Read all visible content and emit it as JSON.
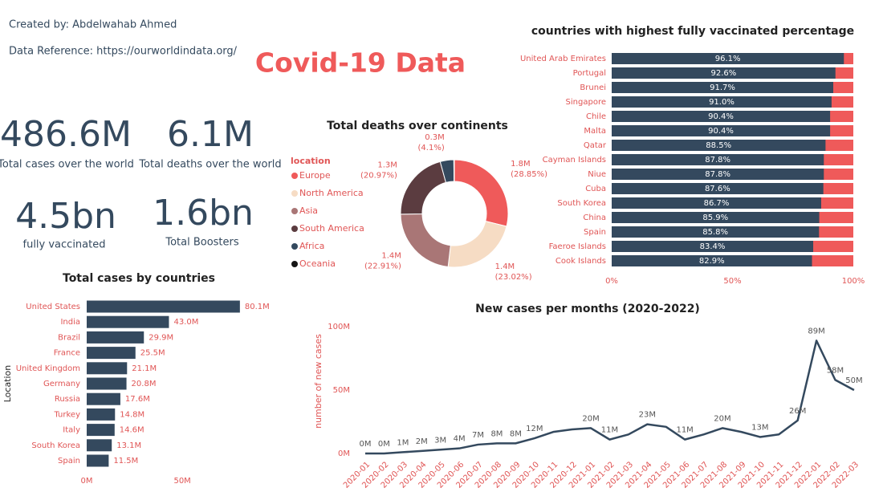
{
  "header": {
    "created_by": "Created by: Abdelwahab Ahmed",
    "reference": "Data Reference: https://ourworldindata.org/",
    "title": "Covid-19 Data"
  },
  "kpis": [
    {
      "value": "486.6M",
      "label": "Total cases over the world"
    },
    {
      "value": "6.1M",
      "label": "Total deaths over the world"
    },
    {
      "value": "4.5bn",
      "label": "fully vaccinated"
    },
    {
      "value": "1.6bn",
      "label": "Total Boosters"
    }
  ],
  "chart_data": [
    {
      "type": "donut",
      "title": "Total deaths over continents",
      "legend_title": "location",
      "legend": "left",
      "categories": [
        "Europe",
        "North America",
        "Asia",
        "South America",
        "Africa",
        "Oceania"
      ],
      "values": [
        28.85,
        23.02,
        22.91,
        20.97,
        4.1,
        0.15
      ],
      "value_labels": [
        "(28.85%)",
        "(23.02%)",
        "(22.91%)",
        "(20.97%)",
        "(4.1%)",
        null
      ],
      "amounts": [
        1.8,
        1.4,
        1.4,
        1.3,
        0.3,
        null
      ],
      "amount_labels": [
        "1.8M",
        "1.4M",
        "1.4M",
        "1.3M",
        "0.3M",
        null
      ],
      "colors": [
        "#ef5a5a",
        "#f6dcc4",
        "#a97676",
        "#5b3c40",
        "#34495e",
        "#151515"
      ]
    },
    {
      "type": "bar",
      "orientation": "horizontal",
      "title": "countries with highest fully vaccinated percentage",
      "categories": [
        "United Arab Emirates",
        "Portugal",
        "Brunei",
        "Singapore",
        "Chile",
        "Malta",
        "Qatar",
        "Cayman Islands",
        "Niue",
        "Cuba",
        "South Korea",
        "China",
        "Spain",
        "Faeroe Islands",
        "Cook Islands"
      ],
      "values": [
        96.1,
        92.6,
        91.7,
        91.0,
        90.4,
        90.4,
        88.5,
        87.8,
        87.8,
        87.6,
        86.7,
        85.9,
        85.8,
        83.4,
        82.9
      ],
      "value_labels": [
        "96.1%",
        "92.6%",
        "91.7%",
        "91.0%",
        "90.4%",
        "90.4%",
        "88.5%",
        "87.8%",
        "87.8%",
        "87.6%",
        "86.7%",
        "85.9%",
        "85.8%",
        "83.4%",
        "82.9%"
      ],
      "color": "#34495e",
      "track_color": "#ef5a5a",
      "xlim": [
        0,
        100
      ],
      "xticks": [
        {
          "value": 0,
          "label": "0%"
        },
        {
          "value": 50,
          "label": "50%"
        },
        {
          "value": 100,
          "label": "100%"
        }
      ]
    },
    {
      "type": "bar",
      "orientation": "horizontal",
      "title": "Total cases by countries",
      "ylabel": "Location",
      "categories": [
        "United States",
        "India",
        "Brazil",
        "France",
        "United Kingdom",
        "Germany",
        "Russia",
        "Turkey",
        "Italy",
        "South Korea",
        "Spain"
      ],
      "values": [
        80.1,
        43.0,
        29.9,
        25.5,
        21.1,
        20.8,
        17.6,
        14.8,
        14.6,
        13.1,
        11.5
      ],
      "value_labels": [
        "80.1M",
        "43.0M",
        "29.9M",
        "25.5M",
        "21.1M",
        "20.8M",
        "17.6M",
        "14.8M",
        "14.6M",
        "13.1M",
        "11.5M"
      ],
      "color": "#34495e",
      "xlim": [
        0,
        81
      ],
      "xticks": [
        {
          "value": 0,
          "label": "0M"
        },
        {
          "value": 50,
          "label": "50M"
        }
      ]
    },
    {
      "type": "line",
      "title": "New cases per months (2020-2022)",
      "ylabel": "number of new cases",
      "categories": [
        "2020-01",
        "2020-02",
        "2020-03",
        "2020-04",
        "2020-05",
        "2020-06",
        "2020-07",
        "2020-08",
        "2020-09",
        "2020-10",
        "2020-11",
        "2020-12",
        "2021-01",
        "2021-02",
        "2021-03",
        "2021-04",
        "2021-05",
        "2021-06",
        "2021-07",
        "2021-08",
        "2021-09",
        "2021-10",
        "2021-11",
        "2021-12",
        "2022-01",
        "2022-02",
        "2022-03"
      ],
      "values": [
        0,
        0,
        1,
        2,
        3,
        4,
        7,
        8,
        8,
        12,
        17,
        19,
        20,
        11,
        15,
        23,
        21,
        11,
        15,
        20,
        17,
        13,
        15,
        26,
        89,
        58,
        50
      ],
      "value_labels": [
        "0M",
        "0M",
        "1M",
        "2M",
        "3M",
        "4M",
        "7M",
        "8M",
        "8M",
        "12M",
        null,
        null,
        "20M",
        "11M",
        null,
        "23M",
        null,
        "11M",
        null,
        "20M",
        null,
        "13M",
        null,
        "26M",
        "89M",
        "58M",
        "50M"
      ],
      "color": "#34495e",
      "ylim": [
        0,
        100
      ],
      "yticks": [
        {
          "value": 0,
          "label": "0M"
        },
        {
          "value": 50,
          "label": "50M"
        },
        {
          "value": 100,
          "label": "100M"
        }
      ]
    }
  ]
}
